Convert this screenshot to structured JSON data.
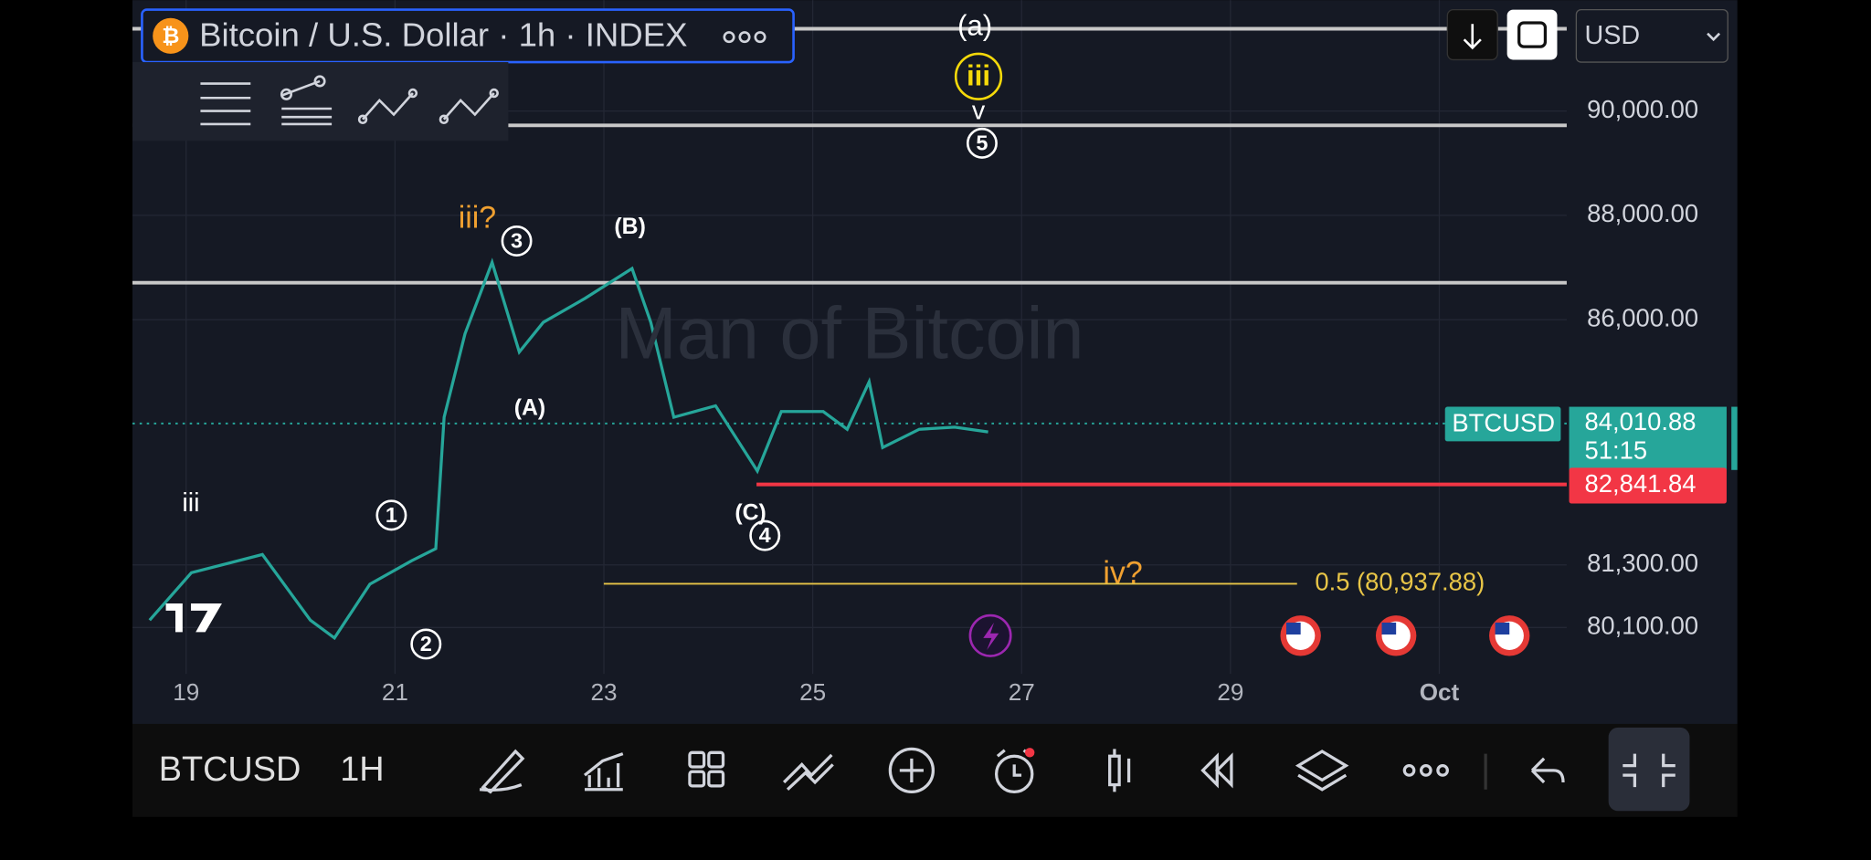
{
  "header": {
    "symbol_title": "Bitcoin / U.S. Dollar · 1h · INDEX",
    "currency": "USD"
  },
  "watermark": "Man of Bitcoin",
  "chart_data": {
    "type": "line",
    "x": [
      18.65,
      19.05,
      19.73,
      20.19,
      20.42,
      20.76,
      21.16,
      21.39,
      21.47,
      21.67,
      21.93,
      22.19,
      22.42,
      22.82,
      23.27,
      23.45,
      23.67,
      24.07,
      24.47,
      24.7,
      25.1,
      25.33,
      25.54,
      25.67,
      26.02,
      26.36,
      26.68
    ],
    "values": [
      80240,
      81150,
      81500,
      80240,
      79900,
      80930,
      81380,
      81610,
      84130,
      85730,
      87100,
      85380,
      85950,
      86410,
      86980,
      85950,
      84130,
      84350,
      83100,
      84240,
      84240,
      83900,
      84810,
      83550,
      83900,
      83940,
      83850
    ],
    "color": "#26a69a",
    "xlim": [
      18.486,
      32.22
    ],
    "xticks": [
      19,
      21,
      23,
      25,
      27,
      29,
      {
        "value": 31,
        "label": "Oct"
      }
    ],
    "ylim": [
      79211,
      92126
    ],
    "yticks": [
      {
        "value": 90000,
        "label": "90,000.00"
      },
      {
        "value": 88000,
        "label": "88,000.00"
      },
      {
        "value": 86000,
        "label": "86,000.00"
      },
      {
        "value": 81300,
        "label": "81,300.00"
      },
      {
        "value": 80100,
        "label": "80,100.00"
      }
    ],
    "grid": true,
    "levels": [
      91577,
      89726,
      86709
    ],
    "last_price": {
      "symbol": "BTCUSD",
      "value": 84010.88,
      "label": "84,010.88",
      "countdown": "51:15"
    },
    "alert_line": {
      "value": 82841.84,
      "label": "82,841.84"
    },
    "fib_level": {
      "value": 80937.88,
      "label": "0.5 (80,937.88)"
    },
    "annotations": [
      "(a)",
      "iii",
      "v",
      "5",
      "iii?",
      "3",
      "(B)",
      "(A)",
      "iii",
      "1",
      "2",
      "(C)",
      "4",
      "iv?"
    ]
  },
  "toolbar": {
    "symbol": "BTCUSD",
    "interval": "1H"
  }
}
